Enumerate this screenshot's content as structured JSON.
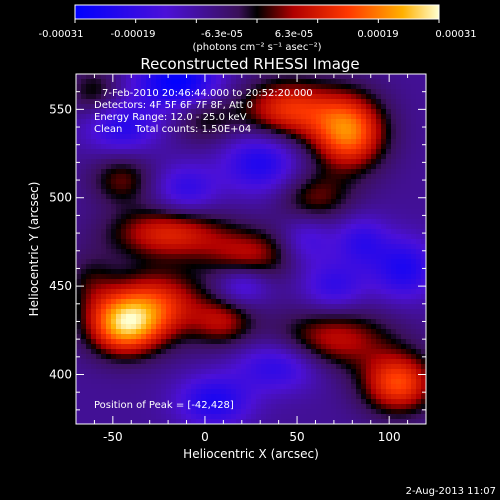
{
  "chart_data": {
    "type": "heatmap",
    "title": "Reconstructed RHESSI Image",
    "xlabel": "Heliocentric X (arcsec)",
    "ylabel": "Heliocentric Y (arcsec)",
    "xlim": [
      -70,
      120
    ],
    "ylim": [
      372,
      570
    ],
    "x_ticks": [
      -50,
      0,
      50,
      100
    ],
    "y_ticks": [
      400,
      450,
      500,
      550
    ],
    "colorbar": {
      "ticks": [
        "-0.00031",
        "-0.00019",
        "-6.3e-05",
        "6.3e-05",
        "0.00019",
        "0.00031"
      ],
      "range": [
        -0.00031,
        0.00031
      ],
      "unit": "(photons cm⁻² s⁻¹ asec⁻²)"
    },
    "info_lines": [
      "7-Feb-2010 20:46:44.000 to 20:52:20.000",
      "Detectors: 4F 5F 6F 7F 8F, Att 0",
      "Energy Range: 12.0 - 25.0 keV",
      "Clean    Total counts: 1.50E+04"
    ],
    "peak_label": "Position of Peak = [-42,428]",
    "timestamp": "2-Aug-2013 11:07",
    "sources": [
      {
        "x": -44,
        "y": 428,
        "value": 0.00031,
        "sx": 14,
        "sy": 12
      },
      {
        "x": -25,
        "y": 440,
        "value": 0.0002,
        "sx": 18,
        "sy": 14
      },
      {
        "x": 78,
        "y": 537,
        "value": 0.00029,
        "sx": 14,
        "sy": 15
      },
      {
        "x": 45,
        "y": 550,
        "value": 0.00022,
        "sx": 18,
        "sy": 12
      },
      {
        "x": 105,
        "y": 395,
        "value": 0.00025,
        "sx": 14,
        "sy": 12
      },
      {
        "x": 70,
        "y": 420,
        "value": 0.00017,
        "sx": 22,
        "sy": 12
      },
      {
        "x": -20,
        "y": 480,
        "value": 0.0002,
        "sx": 22,
        "sy": 10
      },
      {
        "x": 25,
        "y": 468,
        "value": 0.00015,
        "sx": 18,
        "sy": 10
      },
      {
        "x": 10,
        "y": 430,
        "value": 0.00014,
        "sx": 12,
        "sy": 10
      },
      {
        "x": 60,
        "y": 500,
        "value": 0.00012,
        "sx": 14,
        "sy": 10
      },
      {
        "x": -60,
        "y": 560,
        "value": 0.0001,
        "sx": 10,
        "sy": 10
      },
      {
        "x": -45,
        "y": 510,
        "value": 0.00012,
        "sx": 12,
        "sy": 10
      },
      {
        "x": -62,
        "y": 452,
        "value": 8e-05,
        "sx": 10,
        "sy": 12
      },
      {
        "x": 0,
        "y": 545,
        "value": 9e-05,
        "sx": 12,
        "sy": 10
      },
      {
        "x": -15,
        "y": 565,
        "value": -0.00022,
        "sx": 16,
        "sy": 10
      },
      {
        "x": -45,
        "y": 540,
        "value": -0.00014,
        "sx": 14,
        "sy": 10
      },
      {
        "x": 30,
        "y": 520,
        "value": -0.00016,
        "sx": 14,
        "sy": 12
      },
      {
        "x": 108,
        "y": 460,
        "value": -0.00016,
        "sx": 12,
        "sy": 12
      },
      {
        "x": 85,
        "y": 475,
        "value": -0.00012,
        "sx": 10,
        "sy": 10
      },
      {
        "x": 40,
        "y": 405,
        "value": -0.00014,
        "sx": 16,
        "sy": 10
      },
      {
        "x": 5,
        "y": 385,
        "value": -0.00016,
        "sx": 14,
        "sy": 10
      },
      {
        "x": 70,
        "y": 450,
        "value": -0.00012,
        "sx": 12,
        "sy": 10
      },
      {
        "x": -10,
        "y": 505,
        "value": -0.00012,
        "sx": 12,
        "sy": 10
      },
      {
        "x": 20,
        "y": 450,
        "value": -0.00011,
        "sx": 10,
        "sy": 8
      },
      {
        "x": 55,
        "y": 475,
        "value": -0.0001,
        "sx": 10,
        "sy": 10
      }
    ]
  }
}
